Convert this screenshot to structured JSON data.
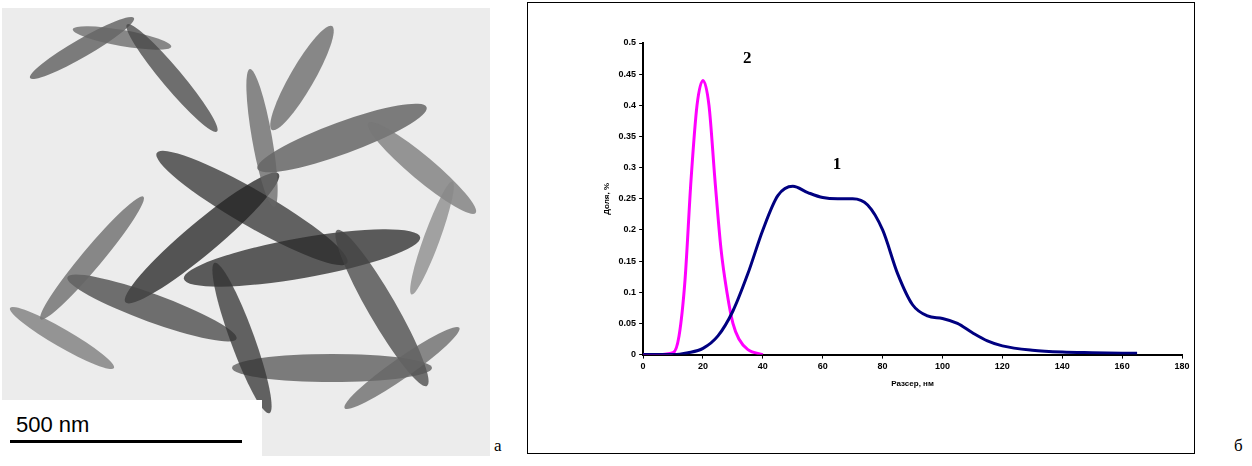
{
  "image_panel": {
    "letter": "а",
    "scale_bar": "500 nm"
  },
  "chart_panel": {
    "letter": "б"
  },
  "chart_data": {
    "type": "line",
    "x_label": "Разсер, нм",
    "y_label": "Доля, %",
    "xlim": [
      0,
      180
    ],
    "xticks": [
      0,
      20,
      40,
      60,
      80,
      100,
      120,
      140,
      160,
      180
    ],
    "ylim": [
      0,
      0.5
    ],
    "yticks": [
      0,
      0.05,
      0.1,
      0.15,
      0.2,
      0.25,
      0.3,
      0.35,
      0.4,
      0.45,
      0.5
    ],
    "grid": false,
    "series": [
      {
        "name": "1",
        "color": "#000080",
        "x": [
          0,
          10,
          15,
          20,
          25,
          30,
          35,
          40,
          45,
          50,
          55,
          60,
          65,
          70,
          75,
          80,
          85,
          90,
          95,
          100,
          105,
          110,
          115,
          120,
          130,
          140,
          150,
          165
        ],
        "values": [
          0,
          0,
          0.003,
          0.01,
          0.03,
          0.07,
          0.13,
          0.2,
          0.255,
          0.27,
          0.26,
          0.252,
          0.25,
          0.25,
          0.24,
          0.2,
          0.13,
          0.08,
          0.062,
          0.058,
          0.05,
          0.035,
          0.022,
          0.014,
          0.007,
          0.004,
          0.003,
          0.002
        ]
      },
      {
        "name": "2",
        "color": "#ff00ff",
        "x": [
          0,
          5,
          10,
          12,
          14,
          16,
          18,
          20,
          22,
          24,
          26,
          28,
          30,
          32,
          35,
          40
        ],
        "values": [
          0,
          0,
          0.003,
          0.03,
          0.12,
          0.28,
          0.4,
          0.44,
          0.4,
          0.28,
          0.17,
          0.1,
          0.05,
          0.025,
          0.008,
          0
        ]
      }
    ]
  }
}
